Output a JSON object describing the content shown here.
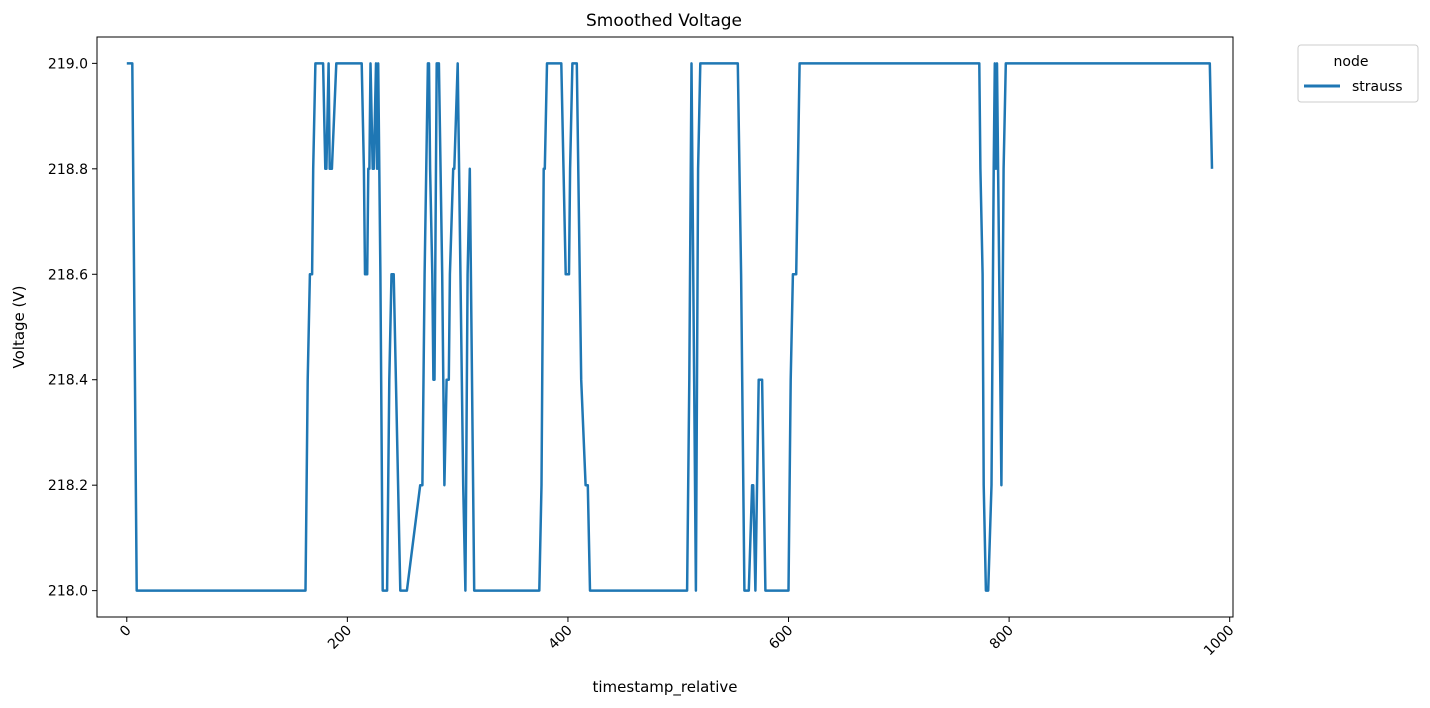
{
  "chart_data": {
    "type": "line",
    "title": "Smoothed Voltage",
    "xlabel": "timestamp_relative",
    "ylabel": "Voltage (V)",
    "xlim": [
      -27,
      1003
    ],
    "ylim": [
      217.95,
      219.05
    ],
    "x_ticks": [
      0,
      200,
      400,
      600,
      800,
      1000
    ],
    "x_tick_labels": [
      "0",
      "200",
      "400",
      "600",
      "800",
      "1000"
    ],
    "y_ticks": [
      218.0,
      218.2,
      218.4,
      218.6,
      218.8,
      219.0
    ],
    "y_tick_labels": [
      "218.0",
      "218.2",
      "218.4",
      "218.6",
      "218.8",
      "219.0"
    ],
    "grid": false,
    "legend": {
      "title": "node",
      "placement": "upper-right-outside"
    },
    "series": [
      {
        "name": "strauss",
        "color": "#1f77b4",
        "x": [
          0,
          3,
          5,
          9,
          162,
          164,
          166,
          168,
          169,
          171,
          178,
          180,
          181,
          183,
          184,
          186,
          190,
          191,
          195,
          213,
          215,
          216,
          218,
          219,
          220,
          221,
          223,
          224,
          226,
          227,
          228,
          230,
          232,
          234,
          236,
          238,
          240,
          242,
          246,
          248,
          250,
          254,
          266,
          268,
          270,
          273,
          274,
          275,
          277,
          278,
          279,
          281,
          283,
          286,
          287,
          288,
          290,
          292,
          293,
          296,
          297,
          300,
          305,
          307,
          309,
          311,
          312,
          314,
          315,
          316,
          320,
          322,
          374,
          376,
          378,
          379,
          381,
          382,
          384,
          394,
          396,
          398,
          401,
          402,
          404,
          408,
          412,
          416,
          418,
          420,
          422,
          508,
          510,
          512,
          516,
          518,
          520,
          554,
          557,
          560,
          564,
          567,
          568,
          570,
          573,
          576,
          579,
          582,
          600,
          602,
          604,
          607,
          610,
          612,
          773,
          774,
          776,
          777,
          779,
          781,
          784,
          786,
          787,
          788,
          789,
          791,
          793,
          795,
          797,
          800,
          802,
          982,
          984
        ],
        "y": [
          219.0,
          219.0,
          219.0,
          218.0,
          218.0,
          218.4,
          218.6,
          218.6,
          218.8,
          219.0,
          219.0,
          218.8,
          218.8,
          219.0,
          218.8,
          218.8,
          219.0,
          219.0,
          219.0,
          219.0,
          218.8,
          218.6,
          218.6,
          218.8,
          218.8,
          219.0,
          218.8,
          218.8,
          219.0,
          218.8,
          219.0,
          218.6,
          218.0,
          218.0,
          218.0,
          218.4,
          218.6,
          218.6,
          218.2,
          218.0,
          218.0,
          218.0,
          218.2,
          218.2,
          218.6,
          219.0,
          219.0,
          218.8,
          218.6,
          218.4,
          218.4,
          219.0,
          219.0,
          218.6,
          218.4,
          218.2,
          218.4,
          218.4,
          218.6,
          218.8,
          218.8,
          219.0,
          218.2,
          218.0,
          218.6,
          218.8,
          218.6,
          218.2,
          218.0,
          218.0,
          218.0,
          218.0,
          218.0,
          218.2,
          218.8,
          218.8,
          219.0,
          219.0,
          219.0,
          219.0,
          218.8,
          218.6,
          218.6,
          218.8,
          219.0,
          219.0,
          218.4,
          218.2,
          218.2,
          218.0,
          218.0,
          218.0,
          218.4,
          219.0,
          218.0,
          218.8,
          219.0,
          219.0,
          218.6,
          218.0,
          218.0,
          218.2,
          218.2,
          218.0,
          218.4,
          218.4,
          218.0,
          218.0,
          218.0,
          218.4,
          218.6,
          218.6,
          219.0,
          219.0,
          219.0,
          218.8,
          218.6,
          218.2,
          218.0,
          218.0,
          218.2,
          218.8,
          219.0,
          218.8,
          219.0,
          218.6,
          218.2,
          218.8,
          219.0,
          219.0,
          219.0,
          219.0,
          218.8
        ]
      }
    ]
  }
}
